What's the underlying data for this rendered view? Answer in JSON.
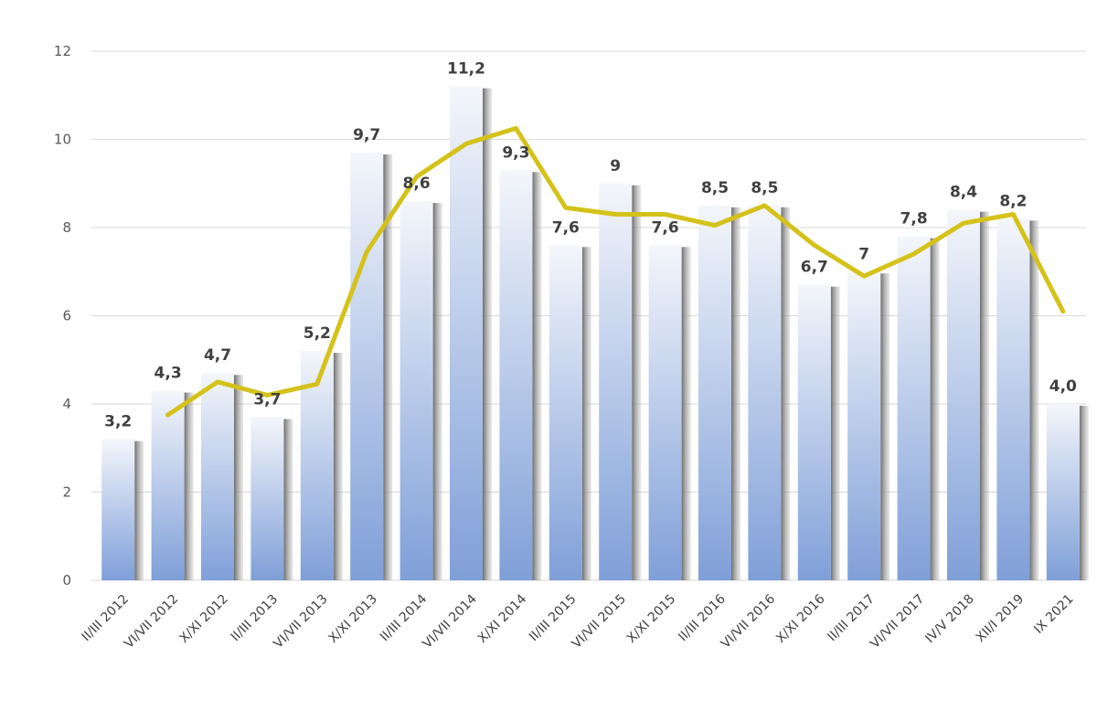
{
  "chart_data": {
    "type": "bar",
    "categories": [
      "II/III 2012",
      "VI/VII 2012",
      "X/XI 2012",
      "II/III 2013",
      "VI/VII 2013",
      "X/XI 2013",
      "II/III 2014",
      "VI/VII 2014",
      "X/XI 2014",
      "II/III 2015",
      "VI/VII 2015",
      "X/XI 2015",
      "II/III 2016",
      "VI/VII 2016",
      "X/XI 2016",
      "II/III 2017",
      "VI/VII 2017",
      "IV/V 2018",
      "XII/I 2019",
      "IX 2021"
    ],
    "series": [
      {
        "type": "bar",
        "values": [
          3.2,
          4.3,
          4.7,
          3.7,
          5.2,
          9.7,
          8.6,
          11.2,
          9.3,
          7.6,
          9,
          7.6,
          8.5,
          8.5,
          6.7,
          7,
          7.8,
          8.4,
          8.2,
          4.0
        ],
        "data_labels": [
          "3,2",
          "4,3",
          "4,7",
          "3,7",
          "5,2",
          "9,7",
          "8,6",
          "11,2",
          "9,3",
          "7,6",
          "9",
          "7,6",
          "8,5",
          "8,5",
          "6,7",
          "7",
          "7,8",
          "8,4",
          "8,2",
          "4,0"
        ]
      },
      {
        "type": "line",
        "values": [
          null,
          3.75,
          4.5,
          4.2,
          4.45,
          7.45,
          9.15,
          9.9,
          10.25,
          8.45,
          8.3,
          8.3,
          8.05,
          8.5,
          7.6,
          6.9,
          7.4,
          8.1,
          8.3,
          6.1
        ]
      }
    ],
    "yticks": [
      "0",
      "2",
      "4",
      "6",
      "8",
      "10",
      "12"
    ],
    "ylim": [
      0,
      12
    ],
    "grid": true,
    "title": "",
    "xlabel": "",
    "ylabel": "",
    "colors": {
      "bar_top": "#f4f6fb",
      "bar_bottom": "#7f9fd8",
      "bar_shadow": "#8c8c8c",
      "line": "#d4c21a",
      "grid": "#d9d9d9"
    }
  }
}
